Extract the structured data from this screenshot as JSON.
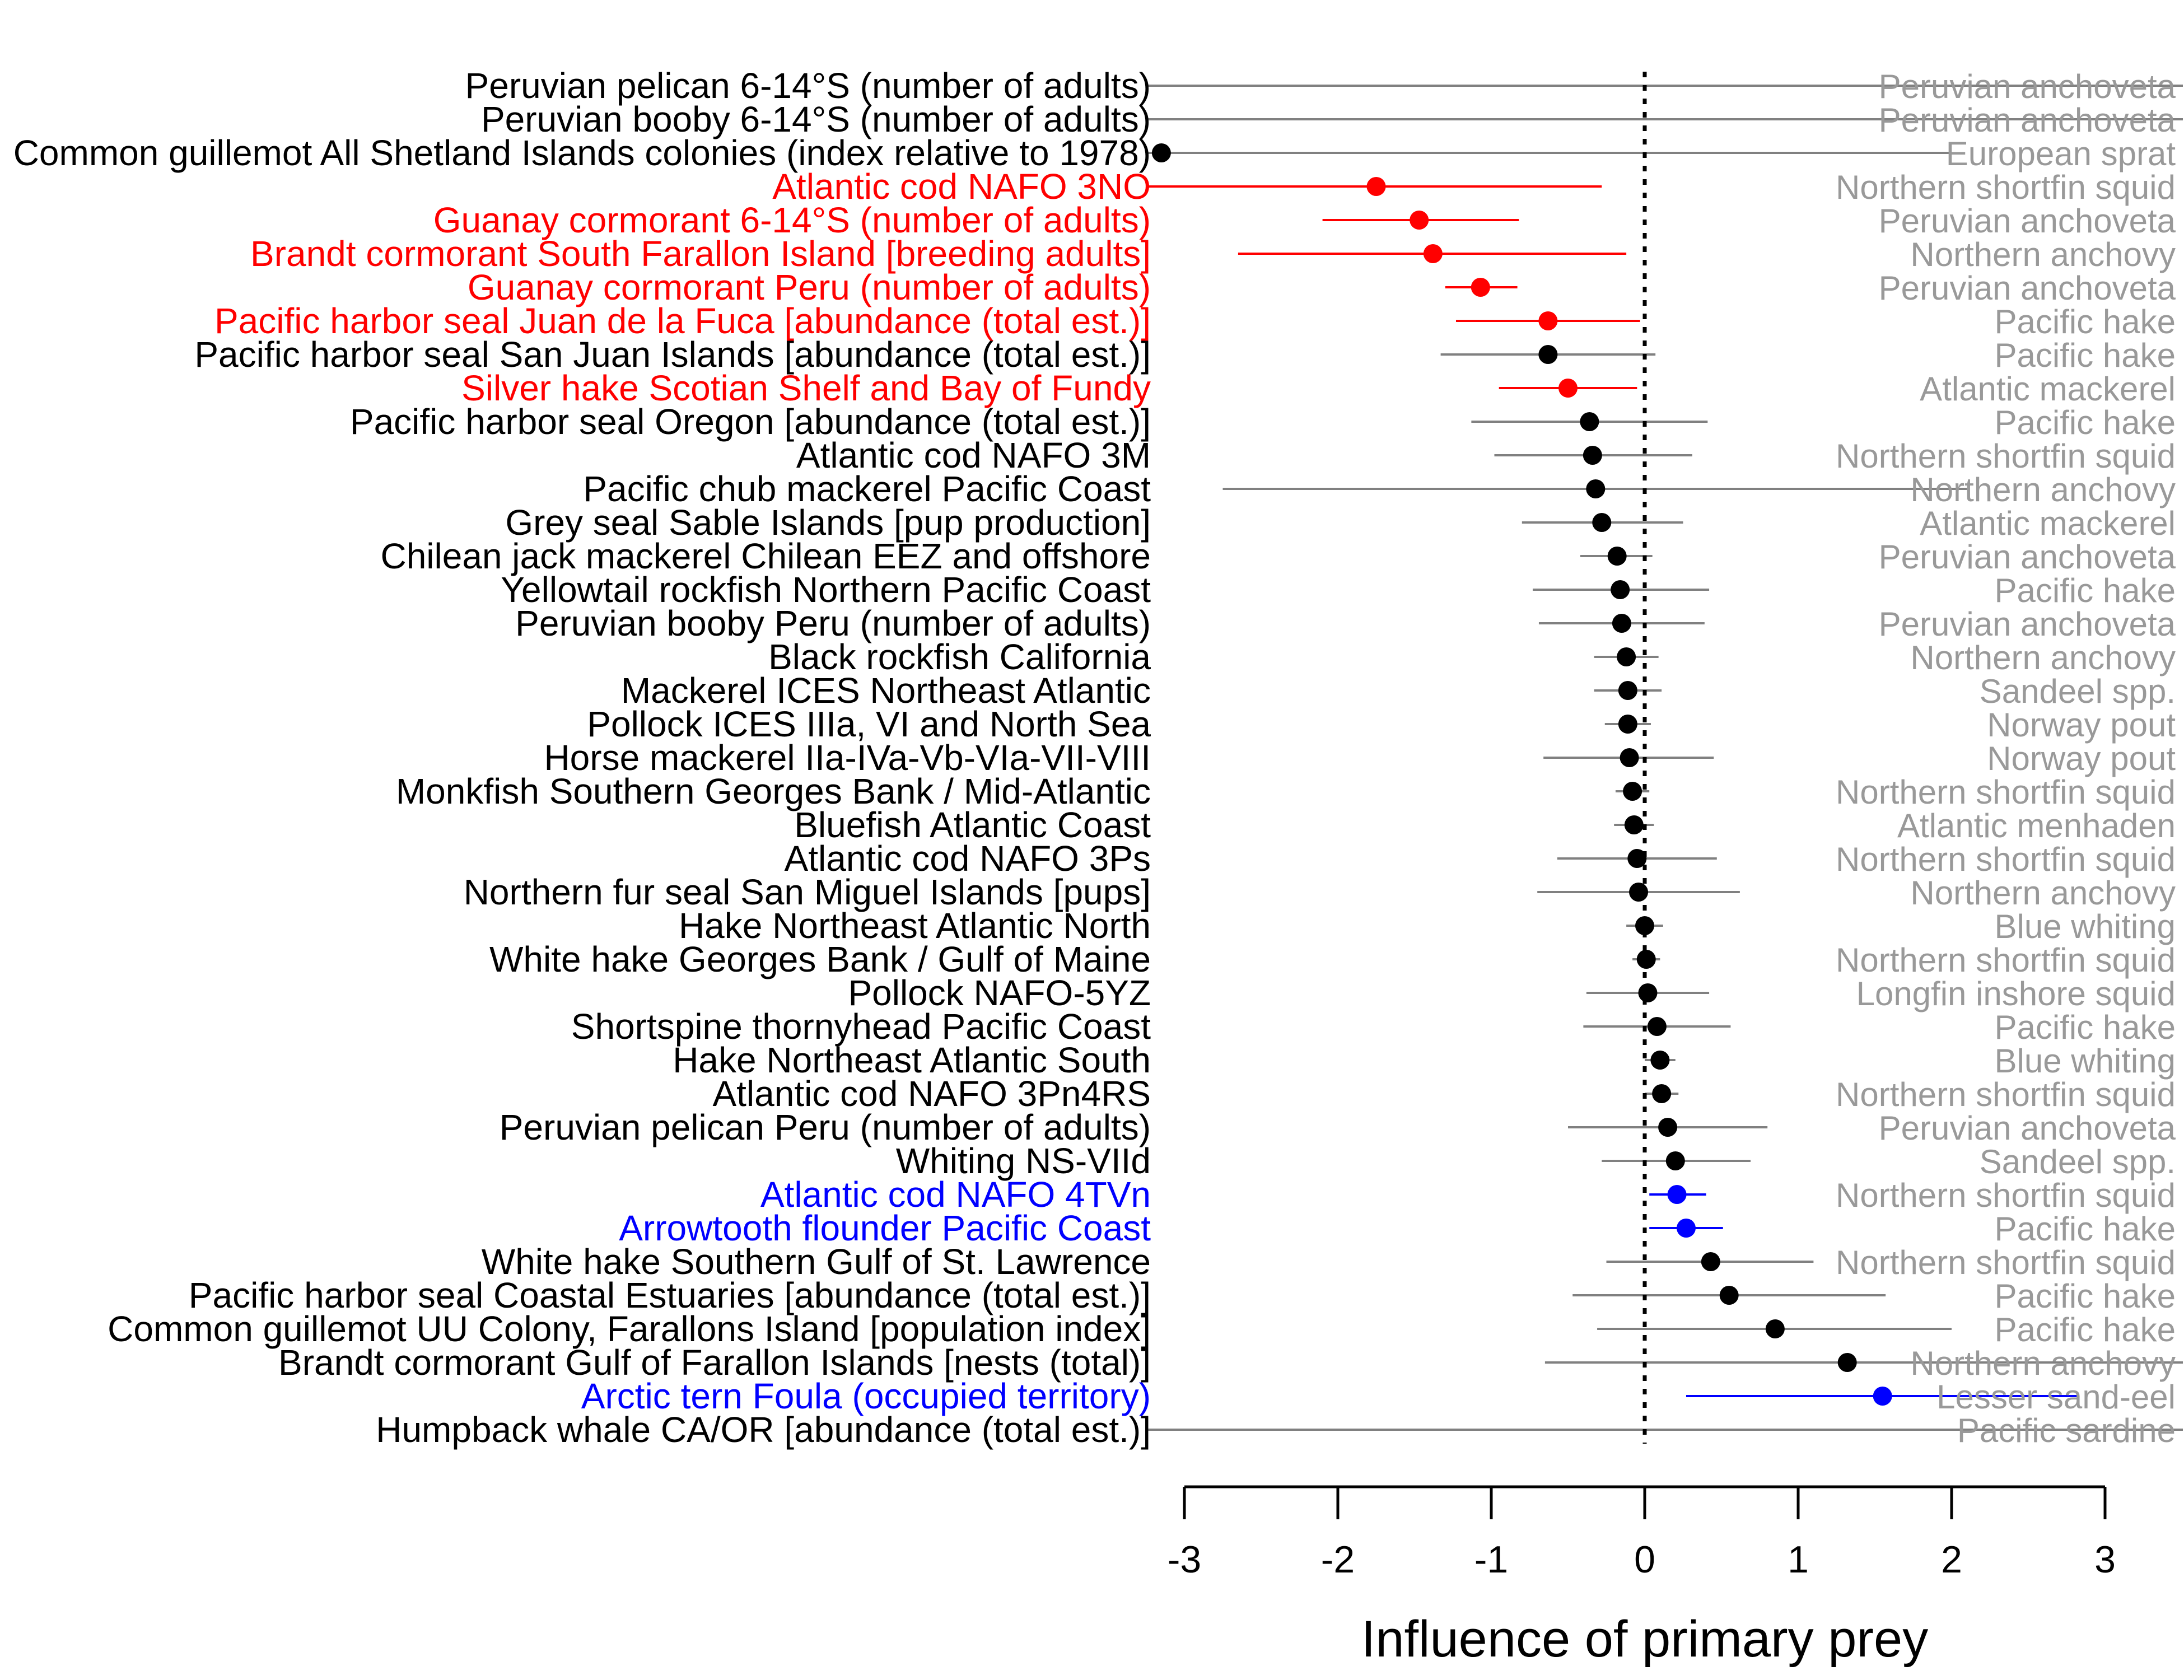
{
  "chart_data": {
    "type": "forest",
    "xlabel": "Influence of primary prey",
    "xlim": [
      -3,
      3
    ],
    "xticks": [
      -3,
      -2,
      -1,
      0,
      1,
      2,
      3
    ],
    "reference_line_x": 0,
    "colors": {
      "negative": "#ff0000",
      "positive": "#0000ff",
      "neutral_point": "#000000",
      "neutral_line": "#808080",
      "prey_label": "#999999"
    },
    "rows": [
      {
        "predator": "Peruvian pelican 6-14°S (number of adults)",
        "prey": "Peruvian anchoveta",
        "estimate": null,
        "lower": null,
        "upper": null,
        "group": "neutral"
      },
      {
        "predator": "Peruvian booby 6-14°S (number of adults)",
        "prey": "Peruvian anchoveta",
        "estimate": null,
        "lower": null,
        "upper": null,
        "group": "neutral"
      },
      {
        "predator": "Common guillemot All Shetland Islands colonies (index relative to 1978)",
        "prey": "European sprat",
        "estimate": -3.15,
        "lower": null,
        "upper": 2.0,
        "group": "neutral"
      },
      {
        "predator": "Atlantic cod NAFO 3NO",
        "prey": "Northern shortfin squid",
        "estimate": -1.75,
        "lower": null,
        "upper": -0.28,
        "group": "negative"
      },
      {
        "predator": "Guanay cormorant 6-14°S (number of adults)",
        "prey": "Peruvian anchoveta",
        "estimate": -1.47,
        "lower": -2.1,
        "upper": -0.82,
        "group": "negative"
      },
      {
        "predator": "Brandt cormorant South Farallon Island [breeding adults]",
        "prey": "Northern anchovy",
        "estimate": -1.38,
        "lower": -2.65,
        "upper": -0.12,
        "group": "negative"
      },
      {
        "predator": "Guanay cormorant Peru (number of adults)",
        "prey": "Peruvian anchoveta",
        "estimate": -1.07,
        "lower": -1.3,
        "upper": -0.83,
        "group": "negative"
      },
      {
        "predator": "Pacific harbor seal Juan de la Fuca [abundance (total est.)]",
        "prey": "Pacific hake",
        "estimate": -0.63,
        "lower": -1.23,
        "upper": -0.03,
        "group": "negative"
      },
      {
        "predator": "Pacific harbor seal San Juan Islands [abundance (total est.)]",
        "prey": "Pacific hake",
        "estimate": -0.63,
        "lower": -1.33,
        "upper": 0.07,
        "group": "neutral"
      },
      {
        "predator": "Silver hake Scotian Shelf and Bay of Fundy",
        "prey": "Atlantic mackerel",
        "estimate": -0.5,
        "lower": -0.95,
        "upper": -0.05,
        "group": "negative"
      },
      {
        "predator": "Pacific harbor seal Oregon [abundance (total est.)]",
        "prey": "Pacific hake",
        "estimate": -0.36,
        "lower": -1.13,
        "upper": 0.41,
        "group": "neutral"
      },
      {
        "predator": "Atlantic cod NAFO 3M",
        "prey": "Northern shortfin squid",
        "estimate": -0.34,
        "lower": -0.98,
        "upper": 0.31,
        "group": "neutral"
      },
      {
        "predator": "Pacific chub mackerel Pacific Coast",
        "prey": "Northern anchovy",
        "estimate": -0.32,
        "lower": -2.75,
        "upper": 2.1,
        "group": "neutral"
      },
      {
        "predator": "Grey seal Sable Islands [pup production]",
        "prey": "Atlantic mackerel",
        "estimate": -0.28,
        "lower": -0.8,
        "upper": 0.25,
        "group": "neutral"
      },
      {
        "predator": "Chilean jack mackerel Chilean EEZ and offshore",
        "prey": "Peruvian anchoveta",
        "estimate": -0.18,
        "lower": -0.42,
        "upper": 0.05,
        "group": "neutral"
      },
      {
        "predator": "Yellowtail rockfish Northern Pacific Coast",
        "prey": "Pacific hake",
        "estimate": -0.16,
        "lower": -0.73,
        "upper": 0.42,
        "group": "neutral"
      },
      {
        "predator": "Peruvian booby Peru (number of adults)",
        "prey": "Peruvian anchoveta",
        "estimate": -0.15,
        "lower": -0.69,
        "upper": 0.39,
        "group": "neutral"
      },
      {
        "predator": "Black rockfish California",
        "prey": "Northern anchovy",
        "estimate": -0.12,
        "lower": -0.33,
        "upper": 0.09,
        "group": "neutral"
      },
      {
        "predator": "Mackerel ICES Northeast Atlantic",
        "prey": "Sandeel spp.",
        "estimate": -0.11,
        "lower": -0.33,
        "upper": 0.11,
        "group": "neutral"
      },
      {
        "predator": "Pollock ICES IIIa, VI and North Sea",
        "prey": "Norway pout",
        "estimate": -0.11,
        "lower": -0.26,
        "upper": 0.04,
        "group": "neutral"
      },
      {
        "predator": "Horse mackerel IIa-IVa-Vb-VIa-VII-VIII",
        "prey": "Norway pout",
        "estimate": -0.1,
        "lower": -0.66,
        "upper": 0.45,
        "group": "neutral"
      },
      {
        "predator": "Monkfish Southern Georges Bank / Mid-Atlantic",
        "prey": "Northern shortfin squid",
        "estimate": -0.08,
        "lower": -0.19,
        "upper": 0.03,
        "group": "neutral"
      },
      {
        "predator": "Bluefish Atlantic Coast",
        "prey": "Atlantic menhaden",
        "estimate": -0.07,
        "lower": -0.2,
        "upper": 0.06,
        "group": "neutral"
      },
      {
        "predator": "Atlantic cod NAFO 3Ps",
        "prey": "Northern shortfin squid",
        "estimate": -0.05,
        "lower": -0.57,
        "upper": 0.47,
        "group": "neutral"
      },
      {
        "predator": "Northern fur seal San Miguel Islands [pups]",
        "prey": "Northern anchovy",
        "estimate": -0.04,
        "lower": -0.7,
        "upper": 0.62,
        "group": "neutral"
      },
      {
        "predator": "Hake Northeast Atlantic North",
        "prey": "Blue whiting",
        "estimate": 0.0,
        "lower": -0.12,
        "upper": 0.12,
        "group": "neutral"
      },
      {
        "predator": "White hake Georges Bank / Gulf of Maine",
        "prey": "Northern shortfin squid",
        "estimate": 0.01,
        "lower": -0.08,
        "upper": 0.1,
        "group": "neutral"
      },
      {
        "predator": "Pollock NAFO-5YZ",
        "prey": "Longfin inshore squid",
        "estimate": 0.02,
        "lower": -0.38,
        "upper": 0.42,
        "group": "neutral"
      },
      {
        "predator": "Shortspine thornyhead Pacific Coast",
        "prey": "Pacific hake",
        "estimate": 0.08,
        "lower": -0.4,
        "upper": 0.56,
        "group": "neutral"
      },
      {
        "predator": "Hake Northeast Atlantic South",
        "prey": "Blue whiting",
        "estimate": 0.1,
        "lower": 0.0,
        "upper": 0.2,
        "group": "neutral"
      },
      {
        "predator": "Atlantic cod NAFO 3Pn4RS",
        "prey": "Northern shortfin squid",
        "estimate": 0.11,
        "lower": 0.0,
        "upper": 0.22,
        "group": "neutral"
      },
      {
        "predator": "Peruvian pelican Peru (number of adults)",
        "prey": "Peruvian anchoveta",
        "estimate": 0.15,
        "lower": -0.5,
        "upper": 0.8,
        "group": "neutral"
      },
      {
        "predator": "Whiting NS-VIId",
        "prey": "Sandeel spp.",
        "estimate": 0.2,
        "lower": -0.28,
        "upper": 0.69,
        "group": "neutral"
      },
      {
        "predator": "Atlantic cod NAFO 4TVn",
        "prey": "Northern shortfin squid",
        "estimate": 0.21,
        "lower": 0.03,
        "upper": 0.4,
        "group": "positive"
      },
      {
        "predator": "Arrowtooth flounder Pacific Coast",
        "prey": "Pacific hake",
        "estimate": 0.27,
        "lower": 0.03,
        "upper": 0.51,
        "group": "positive"
      },
      {
        "predator": "White hake Southern Gulf of St. Lawrence",
        "prey": "Northern shortfin squid",
        "estimate": 0.43,
        "lower": -0.25,
        "upper": 1.1,
        "group": "neutral"
      },
      {
        "predator": "Pacific harbor seal Coastal Estuaries [abundance (total est.)]",
        "prey": "Pacific hake",
        "estimate": 0.55,
        "lower": -0.47,
        "upper": 1.57,
        "group": "neutral"
      },
      {
        "predator": "Common guillemot UU Colony, Farallons Island [population index]",
        "prey": "Pacific hake",
        "estimate": 0.85,
        "lower": -0.31,
        "upper": 2.0,
        "group": "neutral"
      },
      {
        "predator": "Brandt cormorant Gulf of Farallon Islands [nests (total)]",
        "prey": "Northern anchovy",
        "estimate": 1.32,
        "lower": -0.65,
        "upper": null,
        "group": "neutral"
      },
      {
        "predator": "Arctic tern Foula (occupied territory)",
        "prey": "Lesser sand-eel",
        "estimate": 1.55,
        "lower": 0.27,
        "upper": 2.83,
        "group": "positive"
      },
      {
        "predator": "Humpback whale CA/OR [abundance (total est.)]",
        "prey": "Pacific sardine",
        "estimate": null,
        "lower": null,
        "upper": null,
        "group": "neutral"
      }
    ]
  }
}
